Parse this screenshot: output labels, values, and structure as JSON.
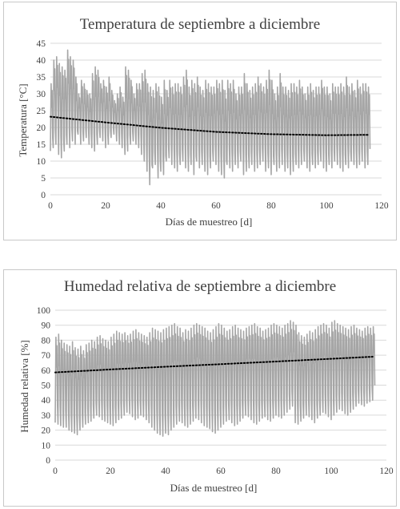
{
  "chart_data": [
    {
      "type": "line",
      "title": "Temperatura  de  septiembre  a  diciembre",
      "xlabel": "Días de muestreo [d]",
      "ylabel": "Temperatura [°C]",
      "xlim": [
        0,
        120
      ],
      "ylim": [
        0,
        45
      ],
      "xticks": [
        0,
        20,
        40,
        60,
        80,
        100,
        120
      ],
      "yticks": [
        0,
        5,
        10,
        15,
        20,
        25,
        30,
        35,
        40,
        45
      ],
      "grid": true,
      "line_color": "#a6a6a6",
      "trend_color": "#000000",
      "series": [
        {
          "style": "solid",
          "daily_max": [
            33,
            40,
            41,
            39,
            38,
            37,
            43,
            41,
            40,
            35,
            30,
            34,
            33,
            31,
            30,
            36,
            38,
            37,
            33,
            34,
            32,
            35,
            31,
            28,
            30,
            32,
            29,
            38,
            37,
            34,
            30,
            33,
            33,
            36,
            37,
            33,
            32,
            31,
            33,
            32,
            29,
            34,
            31,
            34,
            32,
            33,
            33,
            32,
            35,
            37,
            32,
            34,
            33,
            35,
            32,
            31,
            34,
            33,
            32,
            32,
            34,
            33,
            34,
            31,
            34,
            33,
            34,
            30,
            32,
            32,
            36,
            33,
            31,
            32,
            33,
            35,
            33,
            32,
            34,
            37,
            34,
            30,
            32,
            36,
            32,
            32,
            31,
            33,
            33,
            32,
            34,
            32,
            30,
            32,
            33,
            31,
            32,
            32,
            34,
            32,
            32,
            30,
            33,
            32,
            32,
            33,
            32,
            35,
            32,
            33,
            31,
            34,
            32,
            33,
            33,
            32
          ],
          "daily_min": [
            13,
            14,
            15,
            12,
            11,
            13,
            15,
            14,
            16,
            15,
            18,
            15,
            16,
            17,
            15,
            14,
            13,
            15,
            17,
            16,
            14,
            15,
            17,
            18,
            16,
            15,
            14,
            12,
            13,
            15,
            16,
            15,
            14,
            12,
            10,
            7,
            3,
            8,
            9,
            5,
            7,
            6,
            10,
            11,
            9,
            8,
            7,
            9,
            10,
            8,
            7,
            9,
            6,
            10,
            8,
            9,
            7,
            6,
            8,
            10,
            9,
            7,
            6,
            5,
            9,
            8,
            7,
            9,
            8,
            10,
            6,
            7,
            8,
            9,
            7,
            8,
            9,
            10,
            7,
            8,
            6,
            9,
            7,
            8,
            9,
            7,
            8,
            6,
            7,
            9,
            8,
            9,
            10,
            8,
            7,
            9,
            8,
            9,
            10,
            8,
            7,
            9,
            8,
            10,
            9,
            8,
            7,
            9,
            8,
            10,
            9,
            8,
            9,
            10,
            8,
            9
          ]
        },
        {
          "name": "trend",
          "style": "dotted",
          "x": [
            0,
            20,
            40,
            60,
            80,
            100,
            115
          ],
          "y": [
            23.2,
            21.5,
            19.9,
            18.7,
            18.0,
            17.7,
            17.8
          ]
        }
      ]
    },
    {
      "type": "line",
      "title": "Humedad  relativa  de  septiembre  a  diciembre",
      "xlabel": "Días de muestreo [d]",
      "ylabel": "Humedad relativa [%]",
      "xlim": [
        0,
        120
      ],
      "ylim": [
        0,
        100
      ],
      "xticks": [
        0,
        20,
        40,
        60,
        80,
        100,
        120
      ],
      "yticks": [
        0,
        10,
        20,
        30,
        40,
        50,
        60,
        70,
        80,
        90,
        100
      ],
      "grid": true,
      "line_color": "#a6a6a6",
      "trend_color": "#000000",
      "series": [
        {
          "style": "solid",
          "daily_max": [
            82,
            84,
            80,
            78,
            77,
            76,
            79,
            75,
            74,
            76,
            73,
            77,
            78,
            80,
            79,
            82,
            83,
            81,
            80,
            79,
            82,
            84,
            86,
            85,
            84,
            85,
            83,
            84,
            86,
            87,
            85,
            84,
            83,
            82,
            85,
            88,
            87,
            86,
            85,
            87,
            88,
            89,
            90,
            91,
            89,
            88,
            85,
            87,
            86,
            88,
            90,
            91,
            90,
            89,
            88,
            86,
            85,
            87,
            89,
            91,
            90,
            88,
            86,
            87,
            89,
            90,
            88,
            87,
            86,
            88,
            89,
            90,
            91,
            89,
            88,
            86,
            87,
            88,
            90,
            91,
            90,
            89,
            88,
            90,
            91,
            93,
            92,
            90,
            85,
            83,
            82,
            84,
            86,
            85,
            87,
            89,
            90,
            91,
            90,
            88,
            92,
            93,
            91,
            90,
            89,
            88,
            87,
            89,
            90,
            88,
            87,
            86,
            88,
            89,
            88,
            89
          ],
          "daily_min": [
            25,
            24,
            23,
            22,
            22,
            20,
            19,
            18,
            17,
            20,
            22,
            24,
            25,
            26,
            28,
            30,
            29,
            27,
            26,
            25,
            24,
            23,
            25,
            27,
            28,
            30,
            32,
            31,
            29,
            27,
            28,
            30,
            29,
            27,
            25,
            22,
            20,
            18,
            17,
            16,
            18,
            17,
            20,
            22,
            24,
            26,
            25,
            23,
            22,
            24,
            26,
            28,
            27,
            25,
            23,
            22,
            21,
            19,
            18,
            20,
            22,
            24,
            26,
            27,
            25,
            23,
            24,
            26,
            28,
            30,
            29,
            27,
            25,
            24,
            26,
            28,
            29,
            27,
            26,
            28,
            30,
            29,
            28,
            30,
            32,
            34,
            36,
            25,
            24,
            26,
            28,
            30,
            29,
            27,
            25,
            28,
            30,
            32,
            31,
            29,
            27,
            30,
            32,
            34,
            33,
            31,
            30,
            32,
            34,
            36,
            38,
            37,
            36,
            38,
            39,
            40
          ]
        },
        {
          "name": "trend",
          "style": "dotted",
          "x": [
            0,
            20,
            40,
            60,
            80,
            100,
            115
          ],
          "y": [
            58.5,
            60.5,
            62.3,
            64.0,
            65.8,
            67.6,
            69.0
          ]
        }
      ]
    }
  ]
}
